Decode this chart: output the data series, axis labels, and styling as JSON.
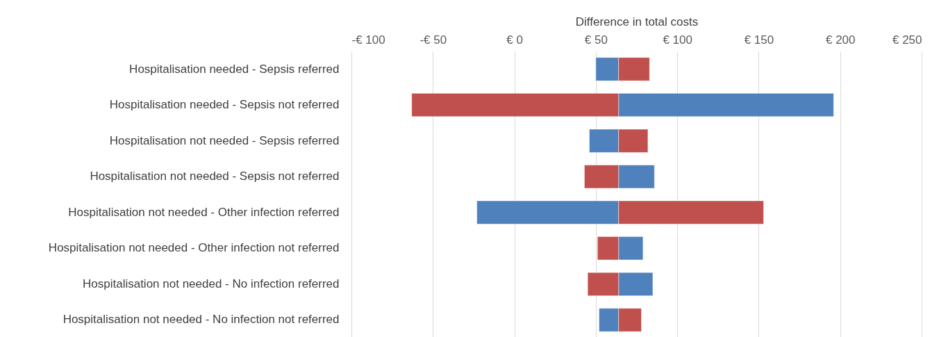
{
  "chart_data": {
    "type": "bar",
    "orientation": "horizontal",
    "xlabel": "Difference in total costs",
    "categories": [
      "Hospitalisation needed - Sepsis referred",
      "Hospitalisation needed - Sepsis not referred",
      "Hospitalisation not needed - Sepsis referred",
      "Hospitalisation not needed - Sepsis not referred",
      "Hospitalisation not needed - Other infection referred",
      "Hospitalisation not needed - Other infection not referred",
      "Hospitalisation not needed - No infection referred",
      "Hospitalisation not needed - No infection not referred"
    ],
    "series": [
      {
        "color": "#4f81bd",
        "base": [
          50,
          64,
          46,
          64,
          -23,
          64,
          64,
          52
        ],
        "values": [
          14,
          132,
          18,
          22,
          87,
          15,
          21,
          12
        ]
      },
      {
        "color": "#c0504d",
        "base": [
          64,
          -63,
          64,
          43,
          64,
          51,
          45,
          64
        ],
        "values": [
          19,
          127,
          18,
          21,
          89,
          13,
          19,
          14
        ]
      }
    ],
    "xlim": [
      -100,
      250
    ],
    "xticks": [
      {
        "value": -100,
        "label": "-€ 100"
      },
      {
        "value": -50,
        "label": "-€ 50"
      },
      {
        "value": 0,
        "label": "€ 0"
      },
      {
        "value": 50,
        "label": "€ 50"
      },
      {
        "value": 100,
        "label": "€ 100"
      },
      {
        "value": 150,
        "label": "€ 150"
      },
      {
        "value": 200,
        "label": "€ 200"
      },
      {
        "value": 250,
        "label": "€ 250"
      }
    ],
    "grid": "x",
    "legend": false
  }
}
